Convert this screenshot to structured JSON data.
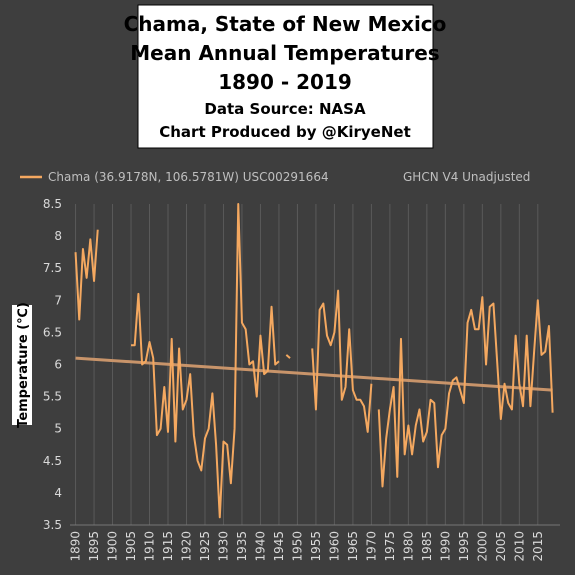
{
  "chart_data": {
    "type": "line",
    "title": [
      "Chama, State of New Mexico",
      "Mean Annual Temperatures",
      "1890 - 2019"
    ],
    "subtitle": [
      "Data Source: NASA",
      "Chart Produced by @KiryeNet"
    ],
    "y_label": "Temperature (℃)",
    "annotation": "GHCN V4 Unadjusted",
    "x": [
      1890,
      1891,
      1892,
      1893,
      1894,
      1895,
      1896,
      1897,
      1898,
      1899,
      1900,
      1901,
      1902,
      1903,
      1904,
      1905,
      1906,
      1907,
      1908,
      1909,
      1910,
      1911,
      1912,
      1913,
      1914,
      1915,
      1916,
      1917,
      1918,
      1919,
      1920,
      1921,
      1922,
      1923,
      1924,
      1925,
      1926,
      1927,
      1928,
      1929,
      1930,
      1931,
      1932,
      1933,
      1934,
      1935,
      1936,
      1937,
      1938,
      1939,
      1940,
      1941,
      1942,
      1943,
      1944,
      1945,
      1946,
      1947,
      1948,
      1949,
      1950,
      1951,
      1952,
      1953,
      1954,
      1955,
      1956,
      1957,
      1958,
      1959,
      1960,
      1961,
      1962,
      1963,
      1964,
      1965,
      1966,
      1967,
      1968,
      1969,
      1970,
      1971,
      1972,
      1973,
      1974,
      1975,
      1976,
      1977,
      1978,
      1979,
      1980,
      1981,
      1982,
      1983,
      1984,
      1985,
      1986,
      1987,
      1988,
      1989,
      1990,
      1991,
      1992,
      1993,
      1994,
      1995,
      1996,
      1997,
      1998,
      1999,
      2000,
      2001,
      2002,
      2003,
      2004,
      2005,
      2006,
      2007,
      2008,
      2009,
      2010,
      2011,
      2012,
      2013,
      2014,
      2015,
      2016,
      2017,
      2018,
      2019
    ],
    "series": [
      {
        "name": "Chama (36.9178N, 106.5781W) USC00291664",
        "color": "#f4a860",
        "values": [
          7.75,
          6.7,
          7.8,
          7.35,
          7.95,
          7.3,
          8.1,
          null,
          null,
          null,
          null,
          null,
          null,
          null,
          null,
          6.3,
          6.3,
          7.1,
          6.0,
          6.05,
          6.35,
          6.1,
          4.9,
          5.0,
          5.65,
          4.95,
          6.4,
          4.8,
          6.25,
          5.3,
          5.45,
          5.85,
          4.9,
          4.5,
          4.35,
          4.85,
          5.0,
          5.55,
          4.75,
          3.62,
          4.8,
          4.75,
          4.15,
          5.0,
          8.5,
          6.65,
          6.55,
          6.0,
          6.05,
          5.5,
          6.45,
          5.85,
          5.9,
          6.9,
          6.0,
          6.05,
          null,
          6.15,
          6.1,
          null,
          null,
          null,
          null,
          null,
          6.25,
          5.3,
          6.85,
          6.95,
          6.45,
          6.3,
          6.5,
          7.15,
          5.45,
          5.65,
          6.55,
          5.6,
          5.45,
          5.45,
          5.35,
          4.95,
          5.7,
          null,
          5.3,
          4.1,
          4.85,
          5.3,
          5.65,
          4.25,
          6.4,
          4.6,
          5.05,
          4.6,
          5.05,
          5.3,
          4.8,
          4.95,
          5.45,
          5.4,
          4.4,
          4.9,
          5.0,
          5.55,
          5.75,
          5.8,
          5.6,
          5.4,
          6.65,
          6.85,
          6.55,
          6.55,
          7.05,
          6.0,
          6.9,
          6.95,
          6.05,
          5.15,
          5.7,
          5.4,
          5.3,
          6.45,
          5.7,
          5.35,
          6.45,
          5.35,
          6.2,
          7.0,
          6.15,
          6.2,
          6.6,
          5.25
        ]
      }
    ],
    "trendline": {
      "x": [
        1890,
        2019
      ],
      "values": [
        6.1,
        5.6
      ],
      "color": "#c8946a"
    },
    "xlim": [
      1888.5,
      2021
    ],
    "xticks": [
      1890,
      1895,
      1900,
      1905,
      1910,
      1915,
      1920,
      1925,
      1930,
      1935,
      1940,
      1945,
      1950,
      1955,
      1960,
      1965,
      1970,
      1975,
      1980,
      1985,
      1990,
      1995,
      2000,
      2005,
      2010,
      2015
    ],
    "ylim": [
      3.5,
      8.5
    ],
    "yticks": [
      3.5,
      4,
      4.5,
      5,
      5.5,
      6,
      6.5,
      7,
      7.5,
      8,
      8.5
    ],
    "grid": true
  }
}
